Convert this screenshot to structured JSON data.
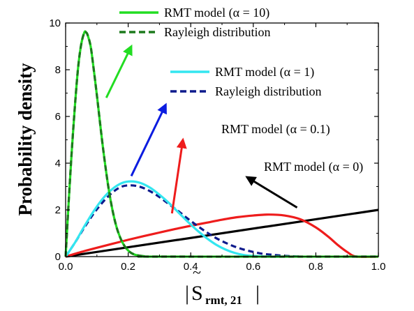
{
  "chart_data": {
    "type": "line",
    "xlabel": "|S̃rmt, 21|",
    "xlabel_parts": {
      "bar": "|",
      "base": "S",
      "tilde": "~",
      "sub": "rmt, 21"
    },
    "ylabel": "Probability density",
    "xlim": [
      0,
      1
    ],
    "ylim": [
      0,
      10
    ],
    "xticks": [
      "0.0",
      "0.2",
      "0.4",
      "0.6",
      "0.8",
      "1.0"
    ],
    "yticks": [
      "0",
      "2",
      "4",
      "6",
      "8",
      "10"
    ],
    "grid": false,
    "legend_position": "top",
    "series": [
      {
        "name": "RMT model (α = 10)",
        "color": "#22dd22",
        "style": "solid",
        "x": [
          0,
          0.01,
          0.02,
          0.03,
          0.04,
          0.05,
          0.06,
          0.065,
          0.07,
          0.08,
          0.09,
          0.1,
          0.12,
          0.14,
          0.16,
          0.18,
          0.2,
          0.22,
          0.25,
          0.3,
          1.0
        ],
        "y": [
          0,
          2.4,
          4.6,
          6.5,
          8.1,
          9.1,
          9.6,
          9.6,
          9.5,
          9.0,
          8.0,
          6.9,
          4.6,
          2.7,
          1.4,
          0.65,
          0.26,
          0.09,
          0.02,
          0,
          0
        ]
      },
      {
        "name": "Rayleigh distribution",
        "color": "#1d7a1d",
        "style": "dashed",
        "x": [
          0,
          0.01,
          0.02,
          0.03,
          0.04,
          0.05,
          0.06,
          0.065,
          0.07,
          0.08,
          0.09,
          0.1,
          0.12,
          0.14,
          0.16,
          0.18,
          0.2,
          0.22,
          0.25,
          0.3,
          1.0
        ],
        "y": [
          0,
          2.4,
          4.6,
          6.5,
          8.1,
          9.1,
          9.6,
          9.6,
          9.5,
          9.0,
          8.0,
          6.9,
          4.6,
          2.7,
          1.4,
          0.65,
          0.26,
          0.09,
          0.02,
          0,
          0
        ]
      },
      {
        "name": "RMT model (α = 1)",
        "color": "#33e6f0",
        "style": "solid",
        "x": [
          0,
          0.03,
          0.06,
          0.09,
          0.12,
          0.15,
          0.18,
          0.21,
          0.24,
          0.27,
          0.3,
          0.33,
          0.36,
          0.39,
          0.42,
          0.45,
          0.48,
          0.51,
          0.54,
          0.57,
          0.6,
          0.65,
          0.7
        ],
        "y": [
          0,
          0.6,
          1.3,
          1.95,
          2.5,
          2.9,
          3.15,
          3.22,
          3.15,
          2.95,
          2.65,
          2.3,
          1.9,
          1.5,
          1.13,
          0.8,
          0.52,
          0.31,
          0.16,
          0.07,
          0.03,
          0,
          0
        ]
      },
      {
        "name": "Rayleigh distribution",
        "color": "#0d1a8c",
        "style": "dashed",
        "x": [
          0,
          0.03,
          0.06,
          0.09,
          0.12,
          0.15,
          0.18,
          0.21,
          0.24,
          0.27,
          0.3,
          0.33,
          0.36,
          0.39,
          0.42,
          0.45,
          0.48,
          0.51,
          0.54,
          0.57,
          0.6,
          0.63,
          0.66,
          0.7,
          0.75
        ],
        "y": [
          0,
          0.6,
          1.25,
          1.85,
          2.35,
          2.75,
          3.0,
          3.05,
          2.98,
          2.8,
          2.55,
          2.25,
          1.95,
          1.63,
          1.33,
          1.05,
          0.8,
          0.6,
          0.43,
          0.3,
          0.2,
          0.12,
          0.08,
          0.03,
          0
        ]
      },
      {
        "name": "RMT model (α = 0.1)",
        "color": "#ee1c1c",
        "style": "solid",
        "x": [
          0,
          0.05,
          0.1,
          0.15,
          0.2,
          0.25,
          0.3,
          0.35,
          0.4,
          0.45,
          0.5,
          0.55,
          0.6,
          0.65,
          0.7,
          0.75,
          0.8,
          0.84,
          0.87,
          0.9,
          0.93,
          1.0
        ],
        "y": [
          0,
          0.2,
          0.38,
          0.55,
          0.72,
          0.88,
          1.03,
          1.18,
          1.32,
          1.45,
          1.58,
          1.69,
          1.76,
          1.8,
          1.76,
          1.6,
          1.25,
          0.85,
          0.5,
          0.2,
          0,
          0
        ]
      },
      {
        "name": "RMT model (α = 0)",
        "color": "#000000",
        "style": "solid",
        "x": [
          0,
          1.0
        ],
        "y": [
          0,
          2.0
        ]
      }
    ],
    "legends": [
      {
        "series": [
          0,
          1
        ],
        "labels": [
          "RMT model (α = 10)",
          "Rayleigh distribution"
        ]
      },
      {
        "series": [
          2,
          3
        ],
        "labels": [
          "RMT model (α = 1)",
          "Rayleigh distribution"
        ]
      }
    ],
    "annotations": [
      {
        "text": "RMT model (α = 0.1)",
        "color": "#ee1c1c",
        "from": [
          0.34,
          1.85
        ],
        "to": [
          0.375,
          5.0
        ]
      },
      {
        "text": "RMT model (α = 0)",
        "color": "#000000",
        "from": [
          0.74,
          2.1
        ],
        "to": [
          0.58,
          3.4
        ]
      }
    ],
    "arrows": [
      {
        "color": "#22dd22",
        "from": [
          0.13,
          6.8
        ],
        "to": [
          0.21,
          9.0
        ]
      },
      {
        "color": "#0b1ce0",
        "from": [
          0.21,
          3.45
        ],
        "to": [
          0.32,
          6.5
        ]
      }
    ]
  }
}
